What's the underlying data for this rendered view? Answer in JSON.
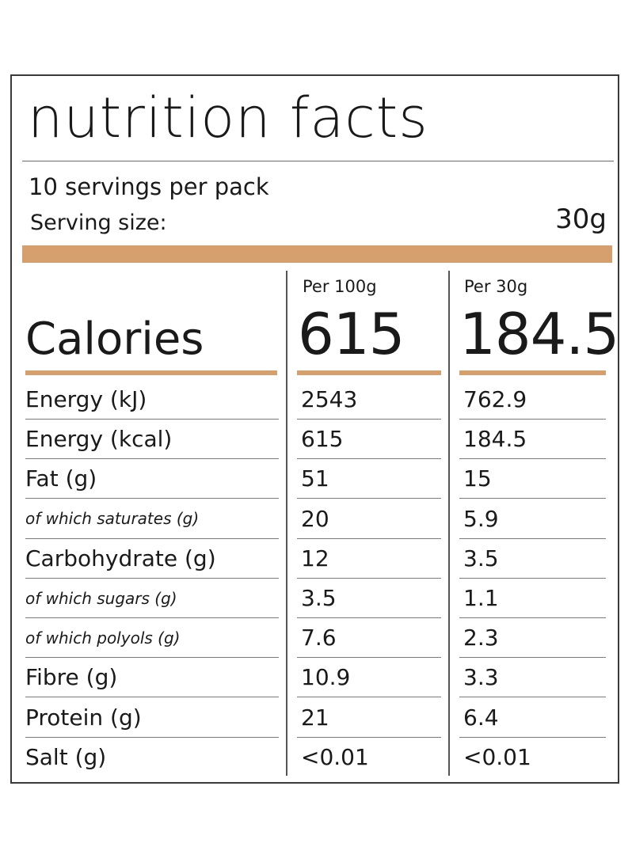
{
  "title": "nutrition facts",
  "servings": "10 servings per pack",
  "serving_size_label": "Serving size:",
  "serving_size_value": "30g",
  "columns": [
    {
      "header": "Per 100g",
      "calories": "615"
    },
    {
      "header": "Per 30g",
      "calories": "184.5"
    }
  ],
  "calories_label": "Calories",
  "accent_color": "#d69f6e",
  "rows": [
    {
      "name": "Energy (kJ)",
      "sub": false,
      "v1": "2543",
      "v2": "762.9"
    },
    {
      "name": "Energy (kcal)",
      "sub": false,
      "v1": "615",
      "v2": "184.5"
    },
    {
      "name": "Fat (g)",
      "sub": false,
      "v1": "51",
      "v2": "15"
    },
    {
      "name": "of which saturates (g)",
      "sub": true,
      "v1": "20",
      "v2": "5.9"
    },
    {
      "name": "Carbohydrate (g)",
      "sub": false,
      "v1": "12",
      "v2": "3.5"
    },
    {
      "name": "of which sugars (g)",
      "sub": true,
      "v1": "3.5",
      "v2": "1.1"
    },
    {
      "name": "of which polyols (g)",
      "sub": true,
      "v1": "7.6",
      "v2": "2.3"
    },
    {
      "name": "Fibre (g)",
      "sub": false,
      "v1": "10.9",
      "v2": "3.3"
    },
    {
      "name": "Protein (g)",
      "sub": false,
      "v1": "21",
      "v2": "6.4"
    },
    {
      "name": "Salt (g)",
      "sub": false,
      "v1": "<0.01",
      "v2": "<0.01"
    }
  ]
}
